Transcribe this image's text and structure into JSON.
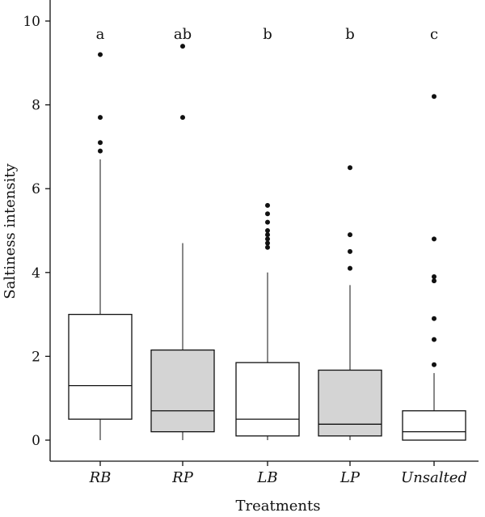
{
  "chart_data": {
    "type": "boxplot",
    "title": "",
    "xlabel": "Treatments",
    "ylabel": "Saltiness intensity",
    "ylim": [
      0,
      10.5
    ],
    "yticks": [
      0,
      2,
      4,
      6,
      8,
      10
    ],
    "grid": false,
    "categories": [
      "RB",
      "RP",
      "LB",
      "LP",
      "Unsalted"
    ],
    "boxes": [
      {
        "category": "RB",
        "letter": "a",
        "fill": "#ffffff",
        "whisker_low": 0,
        "q1": 0.5,
        "median": 1.3,
        "q3": 3.0,
        "whisker_high": 6.7,
        "outliers": [
          6.9,
          7.1,
          7.7,
          9.2
        ]
      },
      {
        "category": "RP",
        "letter": "ab",
        "fill": "#d4d4d4",
        "whisker_low": 0,
        "q1": 0.2,
        "median": 0.7,
        "q3": 2.15,
        "whisker_high": 4.7,
        "outliers": [
          7.7,
          9.4
        ]
      },
      {
        "category": "LB",
        "letter": "b",
        "fill": "#ffffff",
        "whisker_low": 0,
        "q1": 0.1,
        "median": 0.5,
        "q3": 1.85,
        "whisker_high": 4.0,
        "outliers": [
          4.6,
          4.7,
          4.8,
          4.9,
          5.0,
          5.2,
          5.4,
          5.6
        ]
      },
      {
        "category": "LP",
        "letter": "b",
        "fill": "#d4d4d4",
        "whisker_low": 0,
        "q1": 0.1,
        "median": 0.38,
        "q3": 1.67,
        "whisker_high": 3.7,
        "outliers": [
          4.1,
          4.5,
          4.9,
          6.5
        ]
      },
      {
        "category": "Unsalted",
        "letter": "c",
        "fill": "#ffffff",
        "whisker_low": 0,
        "q1": 0,
        "median": 0.2,
        "q3": 0.7,
        "whisker_high": 1.6,
        "outliers": [
          1.8,
          2.4,
          2.9,
          3.8,
          3.9,
          4.8,
          8.2
        ]
      }
    ]
  }
}
